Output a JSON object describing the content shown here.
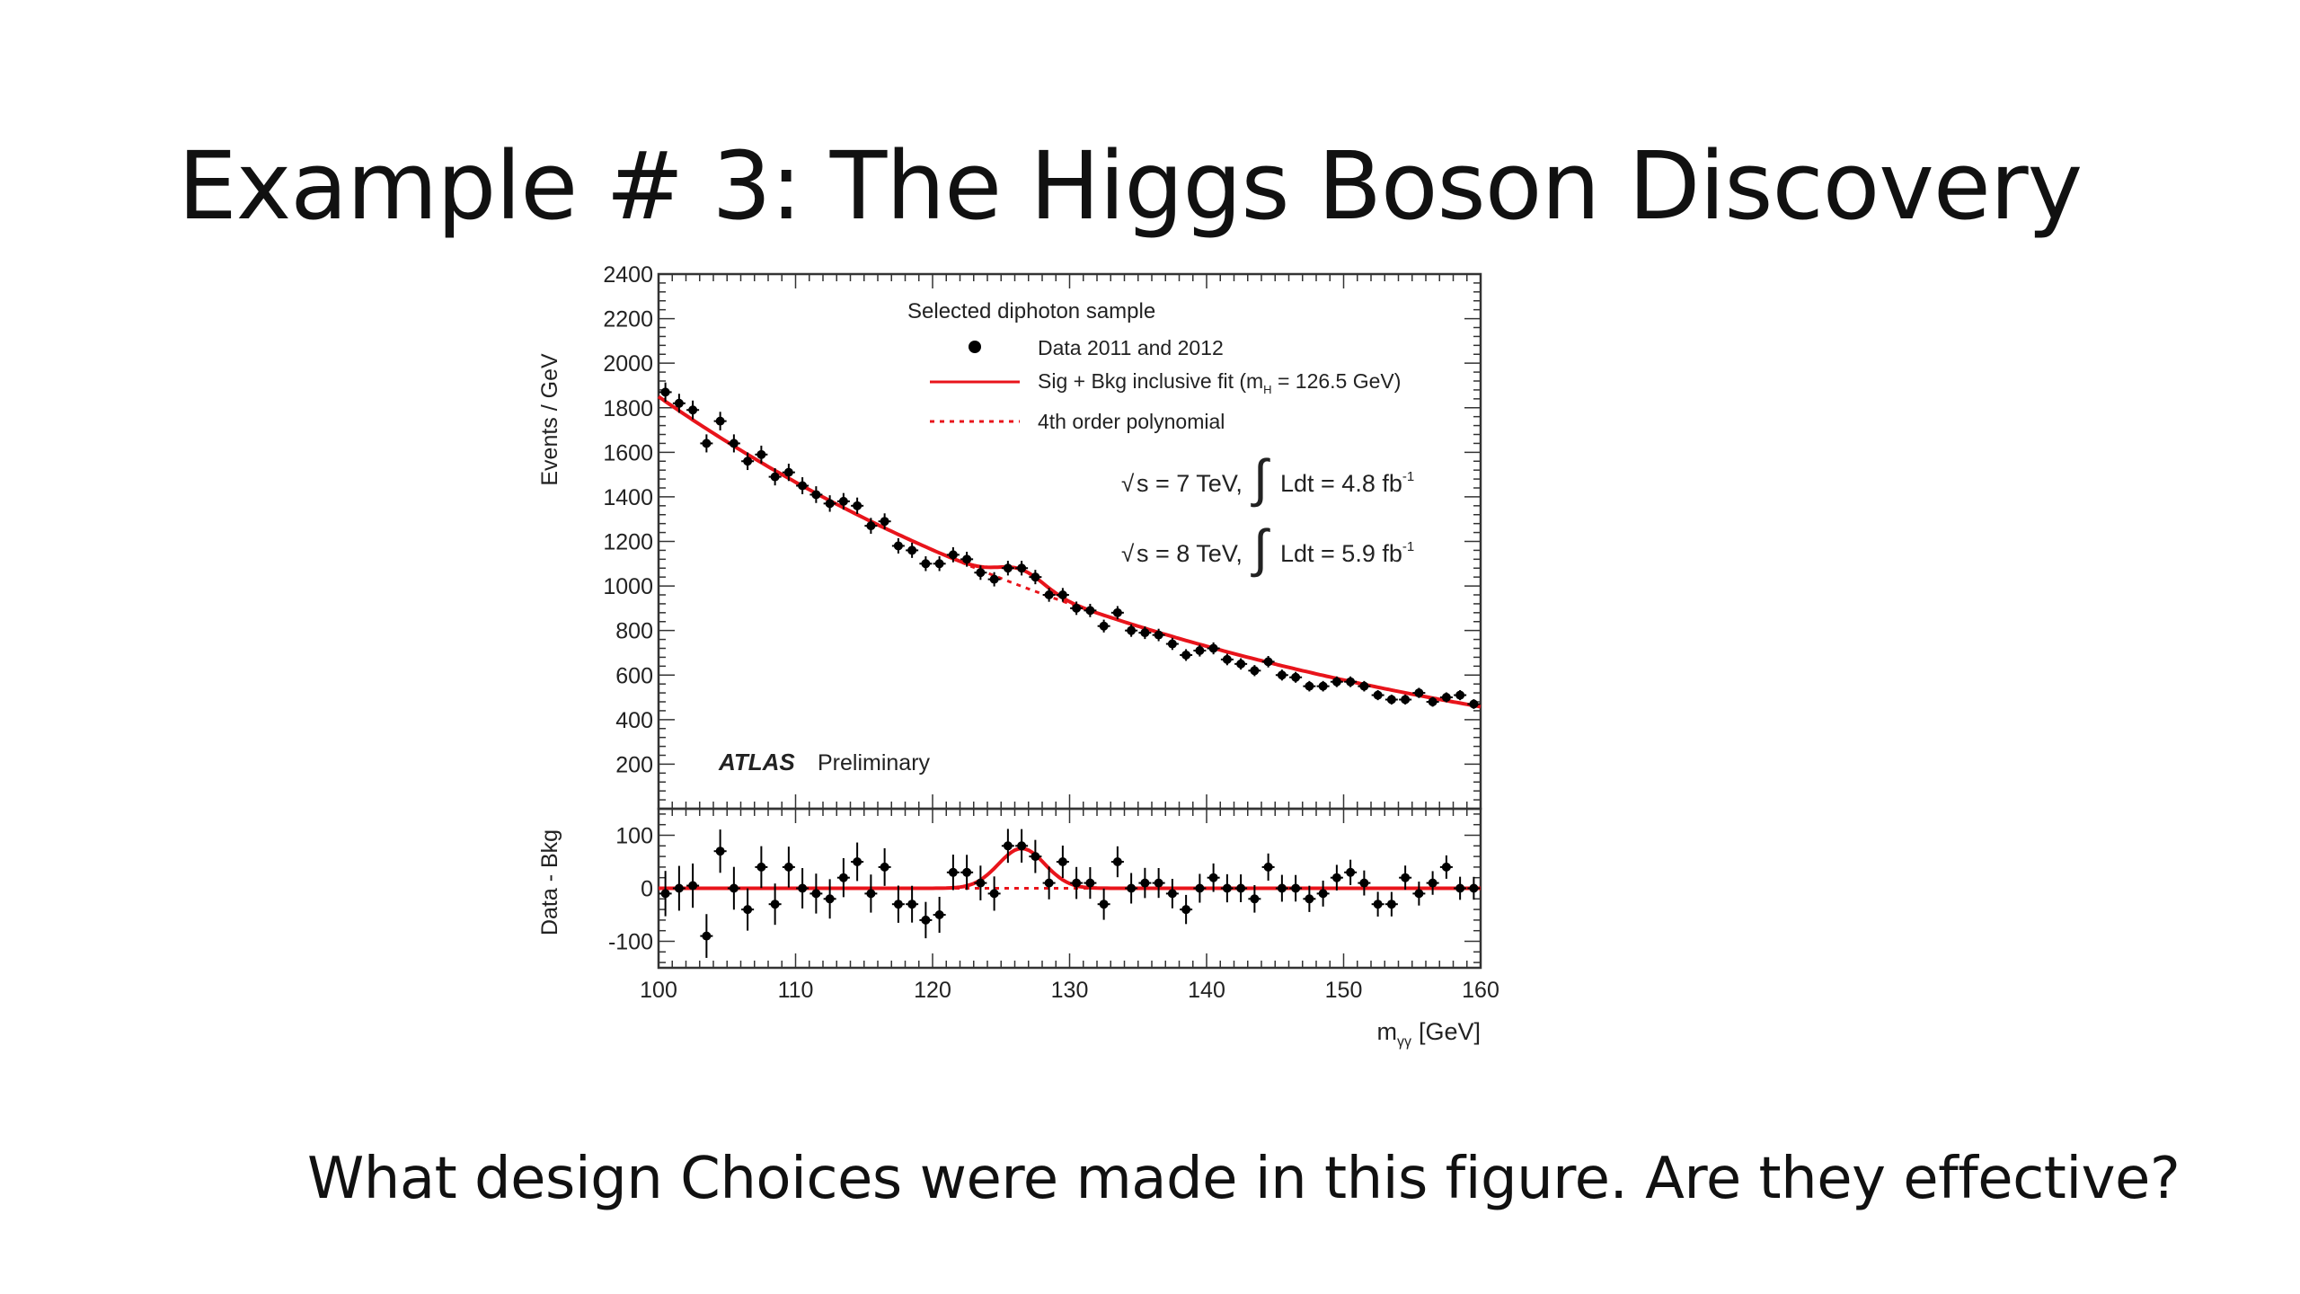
{
  "slide": {
    "title": "Example # 3: The Higgs Boson Discovery",
    "question": "What design Choices were made in this figure. Are they effective?"
  },
  "chart_data": {
    "type": "scatter",
    "colors": {
      "fit": "#e8141b",
      "data": "#000000"
    },
    "xlabel": "m",
    "xlabel_sub": "γγ",
    "xlabel_unit": "[GeV]",
    "xlim": [
      100,
      160
    ],
    "xticks": [
      "100",
      "110",
      "120",
      "130",
      "140",
      "150",
      "160"
    ],
    "main": {
      "ylabel": "Events / GeV",
      "ylim": [
        0,
        2400
      ],
      "yticks": [
        "200",
        "400",
        "600",
        "800",
        "1000",
        "1200",
        "1400",
        "1600",
        "1800",
        "2000",
        "2200",
        "2400"
      ],
      "legend": {
        "header": "Selected diphoton sample",
        "entries": [
          {
            "label": "Data 2011 and 2012",
            "style": "marker"
          },
          {
            "label": "Sig + Bkg inclusive fit (m",
            "sub": "H",
            "tail": " = 126.5 GeV)",
            "style": "solid"
          },
          {
            "label": "4th order polynomial",
            "style": "dotted"
          }
        ]
      },
      "lumi": [
        {
          "energy": "s = 7 TeV,",
          "int": "Ldt = 4.8 fb",
          "sup": "-1"
        },
        {
          "energy": "s = 8 TeV,",
          "int": "Ldt = 5.9 fb",
          "sup": "-1"
        }
      ],
      "experiment": "ATLAS",
      "status": "Preliminary",
      "data_points": [
        {
          "x": 100.5,
          "y": 1870
        },
        {
          "x": 101.5,
          "y": 1820
        },
        {
          "x": 102.5,
          "y": 1790
        },
        {
          "x": 103.5,
          "y": 1640
        },
        {
          "x": 104.5,
          "y": 1740
        },
        {
          "x": 105.5,
          "y": 1640
        },
        {
          "x": 106.5,
          "y": 1560
        },
        {
          "x": 107.5,
          "y": 1590
        },
        {
          "x": 108.5,
          "y": 1490
        },
        {
          "x": 109.5,
          "y": 1510
        },
        {
          "x": 110.5,
          "y": 1450
        },
        {
          "x": 111.5,
          "y": 1410
        },
        {
          "x": 112.5,
          "y": 1370
        },
        {
          "x": 113.5,
          "y": 1380
        },
        {
          "x": 114.5,
          "y": 1360
        },
        {
          "x": 115.5,
          "y": 1270
        },
        {
          "x": 116.5,
          "y": 1290
        },
        {
          "x": 117.5,
          "y": 1180
        },
        {
          "x": 118.5,
          "y": 1160
        },
        {
          "x": 119.5,
          "y": 1100
        },
        {
          "x": 120.5,
          "y": 1100
        },
        {
          "x": 121.5,
          "y": 1140
        },
        {
          "x": 122.5,
          "y": 1120
        },
        {
          "x": 123.5,
          "y": 1060
        },
        {
          "x": 124.5,
          "y": 1030
        },
        {
          "x": 125.5,
          "y": 1080
        },
        {
          "x": 126.5,
          "y": 1080
        },
        {
          "x": 127.5,
          "y": 1040
        },
        {
          "x": 128.5,
          "y": 960
        },
        {
          "x": 129.5,
          "y": 960
        },
        {
          "x": 130.5,
          "y": 900
        },
        {
          "x": 131.5,
          "y": 890
        },
        {
          "x": 132.5,
          "y": 820
        },
        {
          "x": 133.5,
          "y": 880
        },
        {
          "x": 134.5,
          "y": 800
        },
        {
          "x": 135.5,
          "y": 790
        },
        {
          "x": 136.5,
          "y": 780
        },
        {
          "x": 137.5,
          "y": 740
        },
        {
          "x": 138.5,
          "y": 690
        },
        {
          "x": 139.5,
          "y": 710
        },
        {
          "x": 140.5,
          "y": 720
        },
        {
          "x": 141.5,
          "y": 670
        },
        {
          "x": 142.5,
          "y": 650
        },
        {
          "x": 143.5,
          "y": 620
        },
        {
          "x": 144.5,
          "y": 660
        },
        {
          "x": 145.5,
          "y": 600
        },
        {
          "x": 146.5,
          "y": 590
        },
        {
          "x": 147.5,
          "y": 550
        },
        {
          "x": 148.5,
          "y": 550
        },
        {
          "x": 149.5,
          "y": 570
        },
        {
          "x": 150.5,
          "y": 570
        },
        {
          "x": 151.5,
          "y": 550
        },
        {
          "x": 152.5,
          "y": 510
        },
        {
          "x": 153.5,
          "y": 490
        },
        {
          "x": 154.5,
          "y": 490
        },
        {
          "x": 155.5,
          "y": 520
        },
        {
          "x": 156.5,
          "y": 480
        },
        {
          "x": 157.5,
          "y": 500
        },
        {
          "x": 158.5,
          "y": 510
        },
        {
          "x": 159.5,
          "y": 470
        }
      ]
    },
    "ratio": {
      "ylabel": "Data - Bkg",
      "ylim": [
        -150,
        150
      ],
      "yticks": [
        "-100",
        "0",
        "100"
      ],
      "data_points": [
        {
          "x": 100.5,
          "y": -10
        },
        {
          "x": 101.5,
          "y": 0
        },
        {
          "x": 102.5,
          "y": 5
        },
        {
          "x": 103.5,
          "y": -90
        },
        {
          "x": 104.5,
          "y": 70
        },
        {
          "x": 105.5,
          "y": 0
        },
        {
          "x": 106.5,
          "y": -40
        },
        {
          "x": 107.5,
          "y": 40
        },
        {
          "x": 108.5,
          "y": -30
        },
        {
          "x": 109.5,
          "y": 40
        },
        {
          "x": 110.5,
          "y": 0
        },
        {
          "x": 111.5,
          "y": -10
        },
        {
          "x": 112.5,
          "y": -20
        },
        {
          "x": 113.5,
          "y": 20
        },
        {
          "x": 114.5,
          "y": 50
        },
        {
          "x": 115.5,
          "y": -10
        },
        {
          "x": 116.5,
          "y": 40
        },
        {
          "x": 117.5,
          "y": -30
        },
        {
          "x": 118.5,
          "y": -30
        },
        {
          "x": 119.5,
          "y": -60
        },
        {
          "x": 120.5,
          "y": -50
        },
        {
          "x": 121.5,
          "y": 30
        },
        {
          "x": 122.5,
          "y": 30
        },
        {
          "x": 123.5,
          "y": 10
        },
        {
          "x": 124.5,
          "y": -10
        },
        {
          "x": 125.5,
          "y": 80
        },
        {
          "x": 126.5,
          "y": 80
        },
        {
          "x": 127.5,
          "y": 60
        },
        {
          "x": 128.5,
          "y": 10
        },
        {
          "x": 129.5,
          "y": 50
        },
        {
          "x": 130.5,
          "y": 10
        },
        {
          "x": 131.5,
          "y": 10
        },
        {
          "x": 132.5,
          "y": -30
        },
        {
          "x": 133.5,
          "y": 50
        },
        {
          "x": 134.5,
          "y": 0
        },
        {
          "x": 135.5,
          "y": 10
        },
        {
          "x": 136.5,
          "y": 10
        },
        {
          "x": 137.5,
          "y": -10
        },
        {
          "x": 138.5,
          "y": -40
        },
        {
          "x": 139.5,
          "y": 0
        },
        {
          "x": 140.5,
          "y": 20
        },
        {
          "x": 141.5,
          "y": 0
        },
        {
          "x": 142.5,
          "y": 0
        },
        {
          "x": 143.5,
          "y": -20
        },
        {
          "x": 144.5,
          "y": 40
        },
        {
          "x": 145.5,
          "y": 0
        },
        {
          "x": 146.5,
          "y": 0
        },
        {
          "x": 147.5,
          "y": -20
        },
        {
          "x": 148.5,
          "y": -10
        },
        {
          "x": 149.5,
          "y": 20
        },
        {
          "x": 150.5,
          "y": 30
        },
        {
          "x": 151.5,
          "y": 10
        },
        {
          "x": 152.5,
          "y": -30
        },
        {
          "x": 153.5,
          "y": -30
        },
        {
          "x": 154.5,
          "y": 20
        },
        {
          "x": 155.5,
          "y": -10
        },
        {
          "x": 156.5,
          "y": 10
        },
        {
          "x": 157.5,
          "y": 40
        },
        {
          "x": 158.5,
          "y": 0
        },
        {
          "x": 159.5,
          "y": 0
        }
      ]
    }
  }
}
